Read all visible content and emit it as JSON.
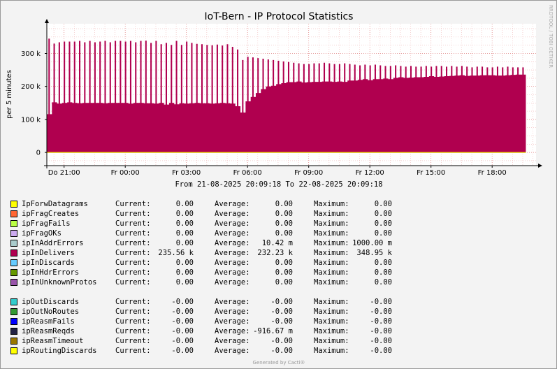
{
  "chart_data": {
    "type": "area",
    "title": "IoT-Bern - IP Protocol Statistics",
    "ylabel": "per 5 minutes",
    "ylim": [
      -40000,
      390000
    ],
    "yticks": [
      {
        "value": 0,
        "label": "0"
      },
      {
        "value": 100000,
        "label": "100 k"
      },
      {
        "value": 200000,
        "label": "200 k"
      },
      {
        "value": 300000,
        "label": "300 k"
      }
    ],
    "xrange_hours": [
      0,
      24
    ],
    "xticks": [
      {
        "hours": 0.847,
        "label": "Do 21:00"
      },
      {
        "hours": 3.847,
        "label": "Fr 00:00"
      },
      {
        "hours": 6.847,
        "label": "Fr 03:00"
      },
      {
        "hours": 9.847,
        "label": "Fr 06:00"
      },
      {
        "hours": 12.847,
        "label": "Fr 09:00"
      },
      {
        "hours": 15.847,
        "label": "Fr 12:00"
      },
      {
        "hours": 18.847,
        "label": "Fr 15:00"
      },
      {
        "hours": 21.847,
        "label": "Fr 18:00"
      }
    ],
    "period_text": "From 21-08-2025 20:09:18 To 22-08-2025 20:09:18",
    "watermark": "RRDTOOL / TOBI OETIKER",
    "footer": "Generated by Cacti®",
    "grid": true,
    "series": [
      {
        "name": "ipInDelivers",
        "color": "#B0004F",
        "interval_hours": 0.25,
        "base": [
          116000,
          152000,
          148000,
          150000,
          152000,
          150000,
          149000,
          150000,
          150000,
          150000,
          150000,
          149000,
          150000,
          150000,
          150000,
          150000,
          148000,
          150000,
          150000,
          149000,
          149000,
          148000,
          150000,
          145000,
          150000,
          146000,
          149000,
          148000,
          149000,
          150000,
          149000,
          149000,
          148000,
          149000,
          150000,
          149000,
          148000,
          140000,
          121000,
          155000,
          168000,
          180000,
          192000,
          200000,
          202000,
          207000,
          210000,
          213000,
          213000,
          215000,
          212000,
          213000,
          214000,
          214000,
          215000,
          215000,
          214000,
          215000,
          214000,
          218000,
          218000,
          220000,
          222000,
          219000,
          222000,
          222000,
          224000,
          222000,
          226000,
          228000,
          226000,
          227000,
          228000,
          228000,
          229000,
          231000,
          229000,
          230000,
          231000,
          232000,
          233000,
          234000,
          232000,
          233000,
          233000,
          234000,
          234000,
          234000,
          233000,
          233000,
          234000,
          235000,
          236000,
          236000
        ],
        "peak": [
          345000,
          330000,
          334000,
          336000,
          336000,
          336000,
          338000,
          334000,
          338000,
          334000,
          336000,
          338000,
          334000,
          338000,
          338000,
          336000,
          338000,
          334000,
          338000,
          339000,
          332000,
          338000,
          328000,
          332000,
          326000,
          338000,
          326000,
          336000,
          332000,
          329000,
          328000,
          326000,
          325000,
          327000,
          324000,
          328000,
          320000,
          312000,
          280000,
          290000,
          288000,
          286000,
          284000,
          282000,
          280000,
          278000,
          276000,
          274000,
          272000,
          270000,
          268000,
          268000,
          270000,
          270000,
          272000,
          270000,
          268000,
          268000,
          270000,
          268000,
          266000,
          264000,
          266000,
          264000,
          266000,
          264000,
          262000,
          262000,
          264000,
          262000,
          260000,
          262000,
          260000,
          260000,
          262000,
          260000,
          262000,
          262000,
          260000,
          262000,
          260000,
          262000,
          260000,
          258000,
          260000,
          260000,
          258000,
          258000,
          260000,
          258000,
          260000,
          258000,
          258000,
          258000
        ],
        "current": "235.56 k",
        "average": "232.23 k",
        "maximum": "348.95 k"
      }
    ]
  },
  "legend": {
    "inbound": [
      {
        "color": "#FFFF00",
        "name": "IpForwDatagrams",
        "current": "0.00",
        "average": "0.00",
        "maximum": "0.00"
      },
      {
        "color": "#FF6633",
        "name": "ipFragCreates",
        "current": "0.00",
        "average": "0.00",
        "maximum": "0.00"
      },
      {
        "color": "#BBFF44",
        "name": "ipFragFails",
        "current": "0.00",
        "average": "0.00",
        "maximum": "0.00"
      },
      {
        "color": "#CCAAEE",
        "name": "ipFragOKs",
        "current": "0.00",
        "average": "0.00",
        "maximum": "0.00"
      },
      {
        "color": "#AACCCC",
        "name": "ipInAddrErrors",
        "current": "0.00",
        "average": "10.42 m",
        "maximum": "1000.00 m"
      },
      {
        "color": "#B0004F",
        "name": "ipInDelivers",
        "current": "235.56 k",
        "average": "232.23 k",
        "maximum": "348.95 k"
      },
      {
        "color": "#66CCFF",
        "name": "ipInDiscards",
        "current": "0.00",
        "average": "0.00",
        "maximum": "0.00"
      },
      {
        "color": "#669900",
        "name": "ipInHdrErrors",
        "current": "0.00",
        "average": "0.00",
        "maximum": "0.00"
      },
      {
        "color": "#9955AA",
        "name": "ipInUnknownProtos",
        "current": "0.00",
        "average": "0.00",
        "maximum": "0.00"
      }
    ],
    "outbound": [
      {
        "color": "#33CCCC",
        "name": "ipOutDiscards",
        "current": "-0.00",
        "average": "-0.00",
        "maximum": "-0.00"
      },
      {
        "color": "#339933",
        "name": "ipOutNoRoutes",
        "current": "-0.00",
        "average": "-0.00",
        "maximum": "-0.00"
      },
      {
        "color": "#0000FF",
        "name": "ipReasmFails",
        "current": "-0.00",
        "average": "-0.00",
        "maximum": "-0.00"
      },
      {
        "color": "#222244",
        "name": "ipReasmReqds",
        "current": "-0.00",
        "average": "-916.67 m",
        "maximum": "-0.00"
      },
      {
        "color": "#997700",
        "name": "ipReasmTimeout",
        "current": "-0.00",
        "average": "-0.00",
        "maximum": "-0.00"
      },
      {
        "color": "#FFFF00",
        "name": "ipRoutingDiscards",
        "current": "-0.00",
        "average": "-0.00",
        "maximum": "-0.00"
      }
    ],
    "labels": {
      "current": "Current:",
      "average": "Average:",
      "maximum": "Maximum:"
    }
  }
}
